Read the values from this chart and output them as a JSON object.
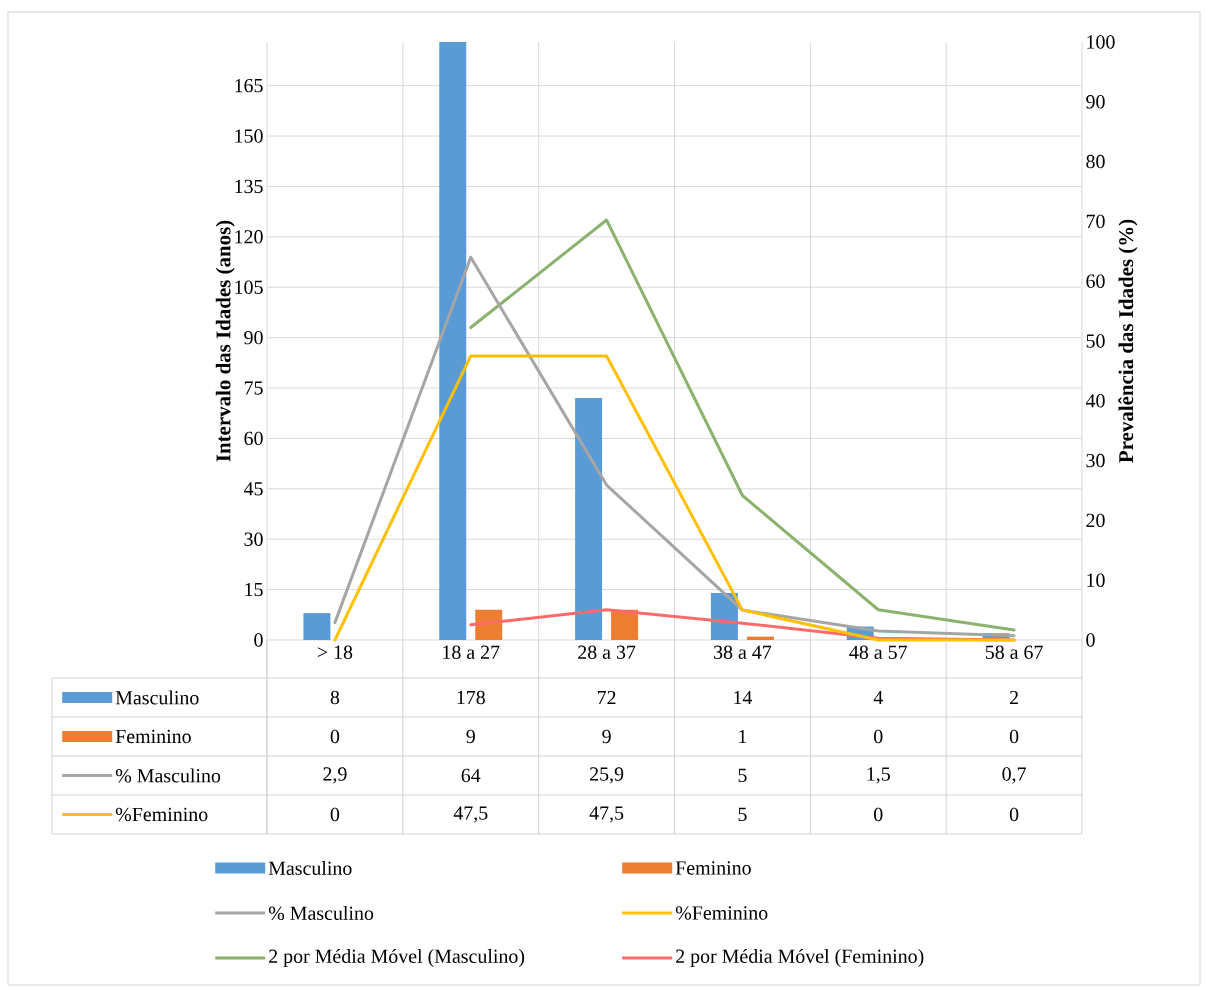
{
  "chart_data": {
    "type": "bar",
    "ylabel": "Intervalo das Idades (anos)",
    "y2label": "Prevalência das Idades (%)",
    "categories": [
      "> 18",
      "18 a 27",
      "28 a 37",
      "38 a 47",
      "48 a 57",
      "58 a 67"
    ],
    "ylim": [
      0,
      178
    ],
    "yticks": [
      0,
      15,
      30,
      45,
      60,
      75,
      90,
      105,
      120,
      135,
      150,
      165
    ],
    "y2lim": [
      0,
      100
    ],
    "y2ticks": [
      0,
      10,
      20,
      30,
      40,
      50,
      60,
      70,
      80,
      90,
      100
    ],
    "grid": true,
    "legend": "bottom",
    "series": [
      {
        "name": "Masculino",
        "color": "#5b9bd5",
        "values": [
          8,
          178,
          72,
          14,
          4,
          2
        ],
        "value_labels": [
          "8",
          "178",
          "72",
          "14",
          "4",
          "2"
        ]
      },
      {
        "name": "Feminino",
        "color": "#ed7d31",
        "values": [
          0,
          9,
          9,
          1,
          0,
          0
        ],
        "value_labels": [
          "0",
          "9",
          "9",
          "1",
          "0",
          "0"
        ]
      },
      {
        "name": "% Masculino",
        "type": "line",
        "axis": "y2",
        "color": "#a5a5a5",
        "values": [
          2.9,
          64,
          25.9,
          5,
          1.5,
          0.7
        ],
        "value_labels": [
          "2,9",
          "64",
          "25,9",
          "5",
          "1,5",
          "0,7"
        ]
      },
      {
        "name": "%Feminino",
        "type": "line",
        "axis": "y2",
        "color": "#ffc000",
        "values": [
          0,
          47.5,
          47.5,
          5,
          0,
          0
        ],
        "value_labels": [
          "0",
          "47,5",
          "47,5",
          "5",
          "0",
          "0"
        ]
      },
      {
        "name": "2 por Média Móvel (Masculino)",
        "type": "line",
        "color": "#8cb26e",
        "values": [
          null,
          93,
          125,
          43,
          9,
          3
        ]
      },
      {
        "name": "2 por Média Móvel (Feminino)",
        "type": "line",
        "color": "#ff6b6b",
        "values": [
          null,
          4.5,
          9,
          5,
          0.5,
          0
        ]
      }
    ]
  }
}
